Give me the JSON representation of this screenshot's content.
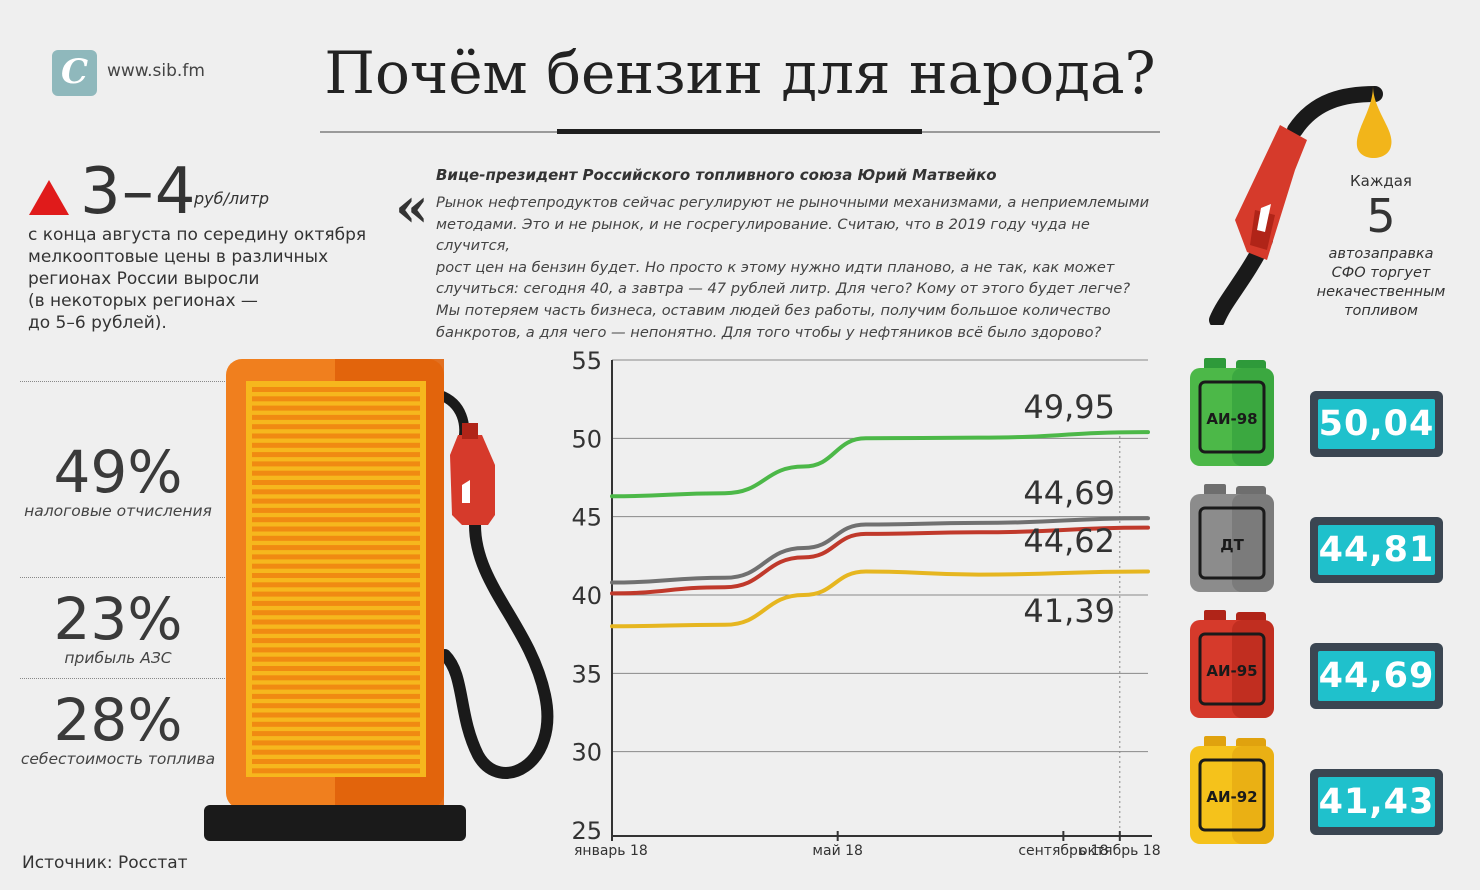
{
  "site": {
    "logo_letter": "С",
    "url": "www.sib.fm"
  },
  "title": "Почём бензин для народа?",
  "headline": {
    "range": "3–4",
    "unit": "руб/литр",
    "lines": [
      "с конца августа по середину октября",
      "мелкооптовые цены в различных",
      "регионах России выросли",
      "(в некоторых регионах —",
      "до 5–6 рублей)."
    ]
  },
  "quote": {
    "mark": "«",
    "author": "Вице-президент Российского топливного союза Юрий Матвейко",
    "lines": [
      "Рынок нефтепродуктов сейчас регулируют не рыночными механизмами, а неприемлемыми",
      "методами. Это и не рынок, и не госрегулирование. Считаю, что в 2019 году чуда не случится,",
      "рост цен на бензин будет. Но просто к этому нужно идти планово, а не так, как может",
      "случиться: сегодня 40, а завтра — 47 рублей литр. Для чего? Кому от этого будет легче?",
      "Мы потеряем часть бизнеса, оставим людей без работы, получим большое количество",
      "банкротов, а для чего — непонятно. Для того чтобы у нефтяников всё было здорово?"
    ]
  },
  "structure": [
    {
      "value": "49%",
      "label": "налоговые отчисления"
    },
    {
      "value": "23%",
      "label": "прибыль АЗС"
    },
    {
      "value": "28%",
      "label": "себестоимость топлива"
    }
  ],
  "source": "Источник: Росстат",
  "counter": {
    "top": "Каждая",
    "number": "5",
    "lines": [
      "автозаправка",
      "СФО торгует",
      "некачественным",
      "топливом"
    ]
  },
  "fuels": [
    {
      "name": "АИ-98",
      "price": "50,04",
      "color": "#4cb848",
      "dark": "#2e9a3a"
    },
    {
      "name": "ДТ",
      "price": "44,81",
      "color": "#8c8c8c",
      "dark": "#6e6e6e"
    },
    {
      "name": "АИ-95",
      "price": "44,69",
      "color": "#d63a2b",
      "dark": "#b02418"
    },
    {
      "name": "АИ-92",
      "price": "41,43",
      "color": "#f5c21b",
      "dark": "#e0a20e"
    }
  ],
  "chart_data": {
    "type": "line",
    "y_ticks": [
      "55",
      "50",
      "45",
      "40",
      "35",
      "30",
      "25"
    ],
    "ylim": [
      25,
      55
    ],
    "x_ticks": [
      {
        "label": "январь 18",
        "month": 1
      },
      {
        "label": "май 18",
        "month": 5
      },
      {
        "label": "сентябрь 18",
        "month": 9
      },
      {
        "label": "октябрь 18",
        "month": 10
      }
    ],
    "series": [
      {
        "color": "#4cb848",
        "points": [
          [
            1,
            46.3
          ],
          [
            3,
            46.5
          ],
          [
            4.4,
            48.2
          ],
          [
            5.5,
            50.0
          ],
          [
            7.5,
            50.05
          ],
          [
            10.5,
            50.4
          ]
        ],
        "end_label": "49,95"
      },
      {
        "color": "#707070",
        "points": [
          [
            1,
            40.8
          ],
          [
            3,
            41.1
          ],
          [
            4.4,
            43.0
          ],
          [
            5.5,
            44.5
          ],
          [
            7.5,
            44.6
          ],
          [
            10.5,
            44.9
          ]
        ],
        "end_label": "44,69"
      },
      {
        "color": "#c0392b",
        "points": [
          [
            1,
            40.1
          ],
          [
            3,
            40.5
          ],
          [
            4.4,
            42.4
          ],
          [
            5.5,
            43.9
          ],
          [
            7.5,
            44.0
          ],
          [
            10.5,
            44.3
          ]
        ],
        "end_label": "44,62"
      },
      {
        "color": "#e6b620",
        "points": [
          [
            1,
            38.0
          ],
          [
            3,
            38.1
          ],
          [
            4.4,
            40.0
          ],
          [
            5.5,
            41.5
          ],
          [
            7.5,
            41.3
          ],
          [
            10.5,
            41.5
          ]
        ],
        "end_label": "41,39"
      }
    ]
  }
}
